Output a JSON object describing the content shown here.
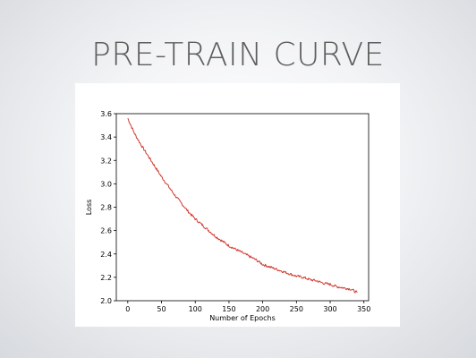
{
  "slide": {
    "title": "PRE-TRAIN CURVE"
  },
  "chart_data": {
    "type": "line",
    "xlabel": "Number of Epochs",
    "ylabel": "Loss",
    "xlim": [
      -17,
      357
    ],
    "ylim": [
      2.0,
      3.6
    ],
    "xticks": [
      0,
      50,
      100,
      150,
      200,
      250,
      300,
      350
    ],
    "yticks": [
      2.0,
      2.2,
      2.4,
      2.6,
      2.8,
      3.0,
      3.2,
      3.4,
      3.6
    ],
    "grid": false,
    "legend": "none",
    "series": [
      {
        "color": "#d03a2e",
        "x": [
          0,
          10,
          20,
          30,
          40,
          50,
          60,
          70,
          80,
          90,
          100,
          110,
          120,
          130,
          140,
          150,
          160,
          170,
          180,
          190,
          200,
          210,
          220,
          230,
          240,
          250,
          260,
          270,
          280,
          290,
          300,
          310,
          320,
          330,
          340
        ],
        "y": [
          3.56,
          3.43,
          3.33,
          3.24,
          3.15,
          3.06,
          2.98,
          2.9,
          2.83,
          2.76,
          2.7,
          2.65,
          2.6,
          2.55,
          2.51,
          2.47,
          2.44,
          2.41,
          2.38,
          2.35,
          2.31,
          2.29,
          2.27,
          2.25,
          2.23,
          2.21,
          2.2,
          2.18,
          2.17,
          2.15,
          2.14,
          2.12,
          2.11,
          2.1,
          2.07
        ]
      }
    ]
  }
}
